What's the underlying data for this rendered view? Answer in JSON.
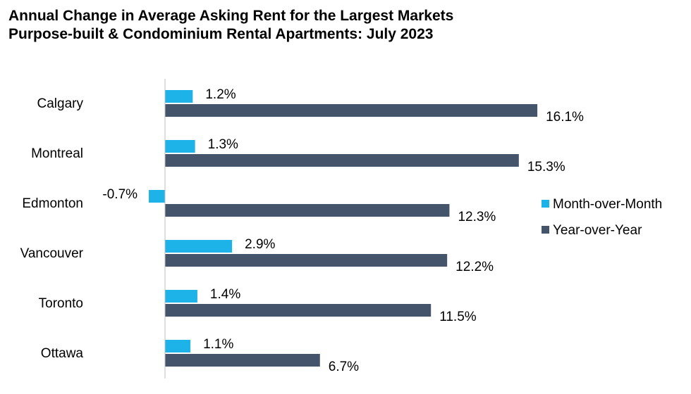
{
  "chart_data": {
    "type": "bar",
    "orientation": "horizontal",
    "title": "Annual Change in Average Asking Rent for the Largest Markets",
    "subtitle": "Purpose-built & Condominium Rental Apartments: July 2023",
    "categories": [
      "Calgary",
      "Montreal",
      "Edmonton",
      "Vancouver",
      "Toronto",
      "Ottawa"
    ],
    "series": [
      {
        "name": "Month-over-Month",
        "values": [
          1.2,
          1.3,
          -0.7,
          2.9,
          1.4,
          1.1
        ],
        "labels": [
          "1.2%",
          "1.3%",
          "-0.7%",
          "2.9%",
          "1.4%",
          "1.1%"
        ],
        "color": "#1eb3e8"
      },
      {
        "name": "Year-over-Year",
        "values": [
          16.1,
          15.3,
          12.3,
          12.2,
          11.5,
          6.7
        ],
        "labels": [
          "16.1%",
          "15.3%",
          "12.3%",
          "12.2%",
          "11.5%",
          "6.7%"
        ],
        "color": "#44546a"
      }
    ],
    "xlim": [
      -0.7,
      16.1
    ],
    "grid": false,
    "legend_position": "right"
  }
}
